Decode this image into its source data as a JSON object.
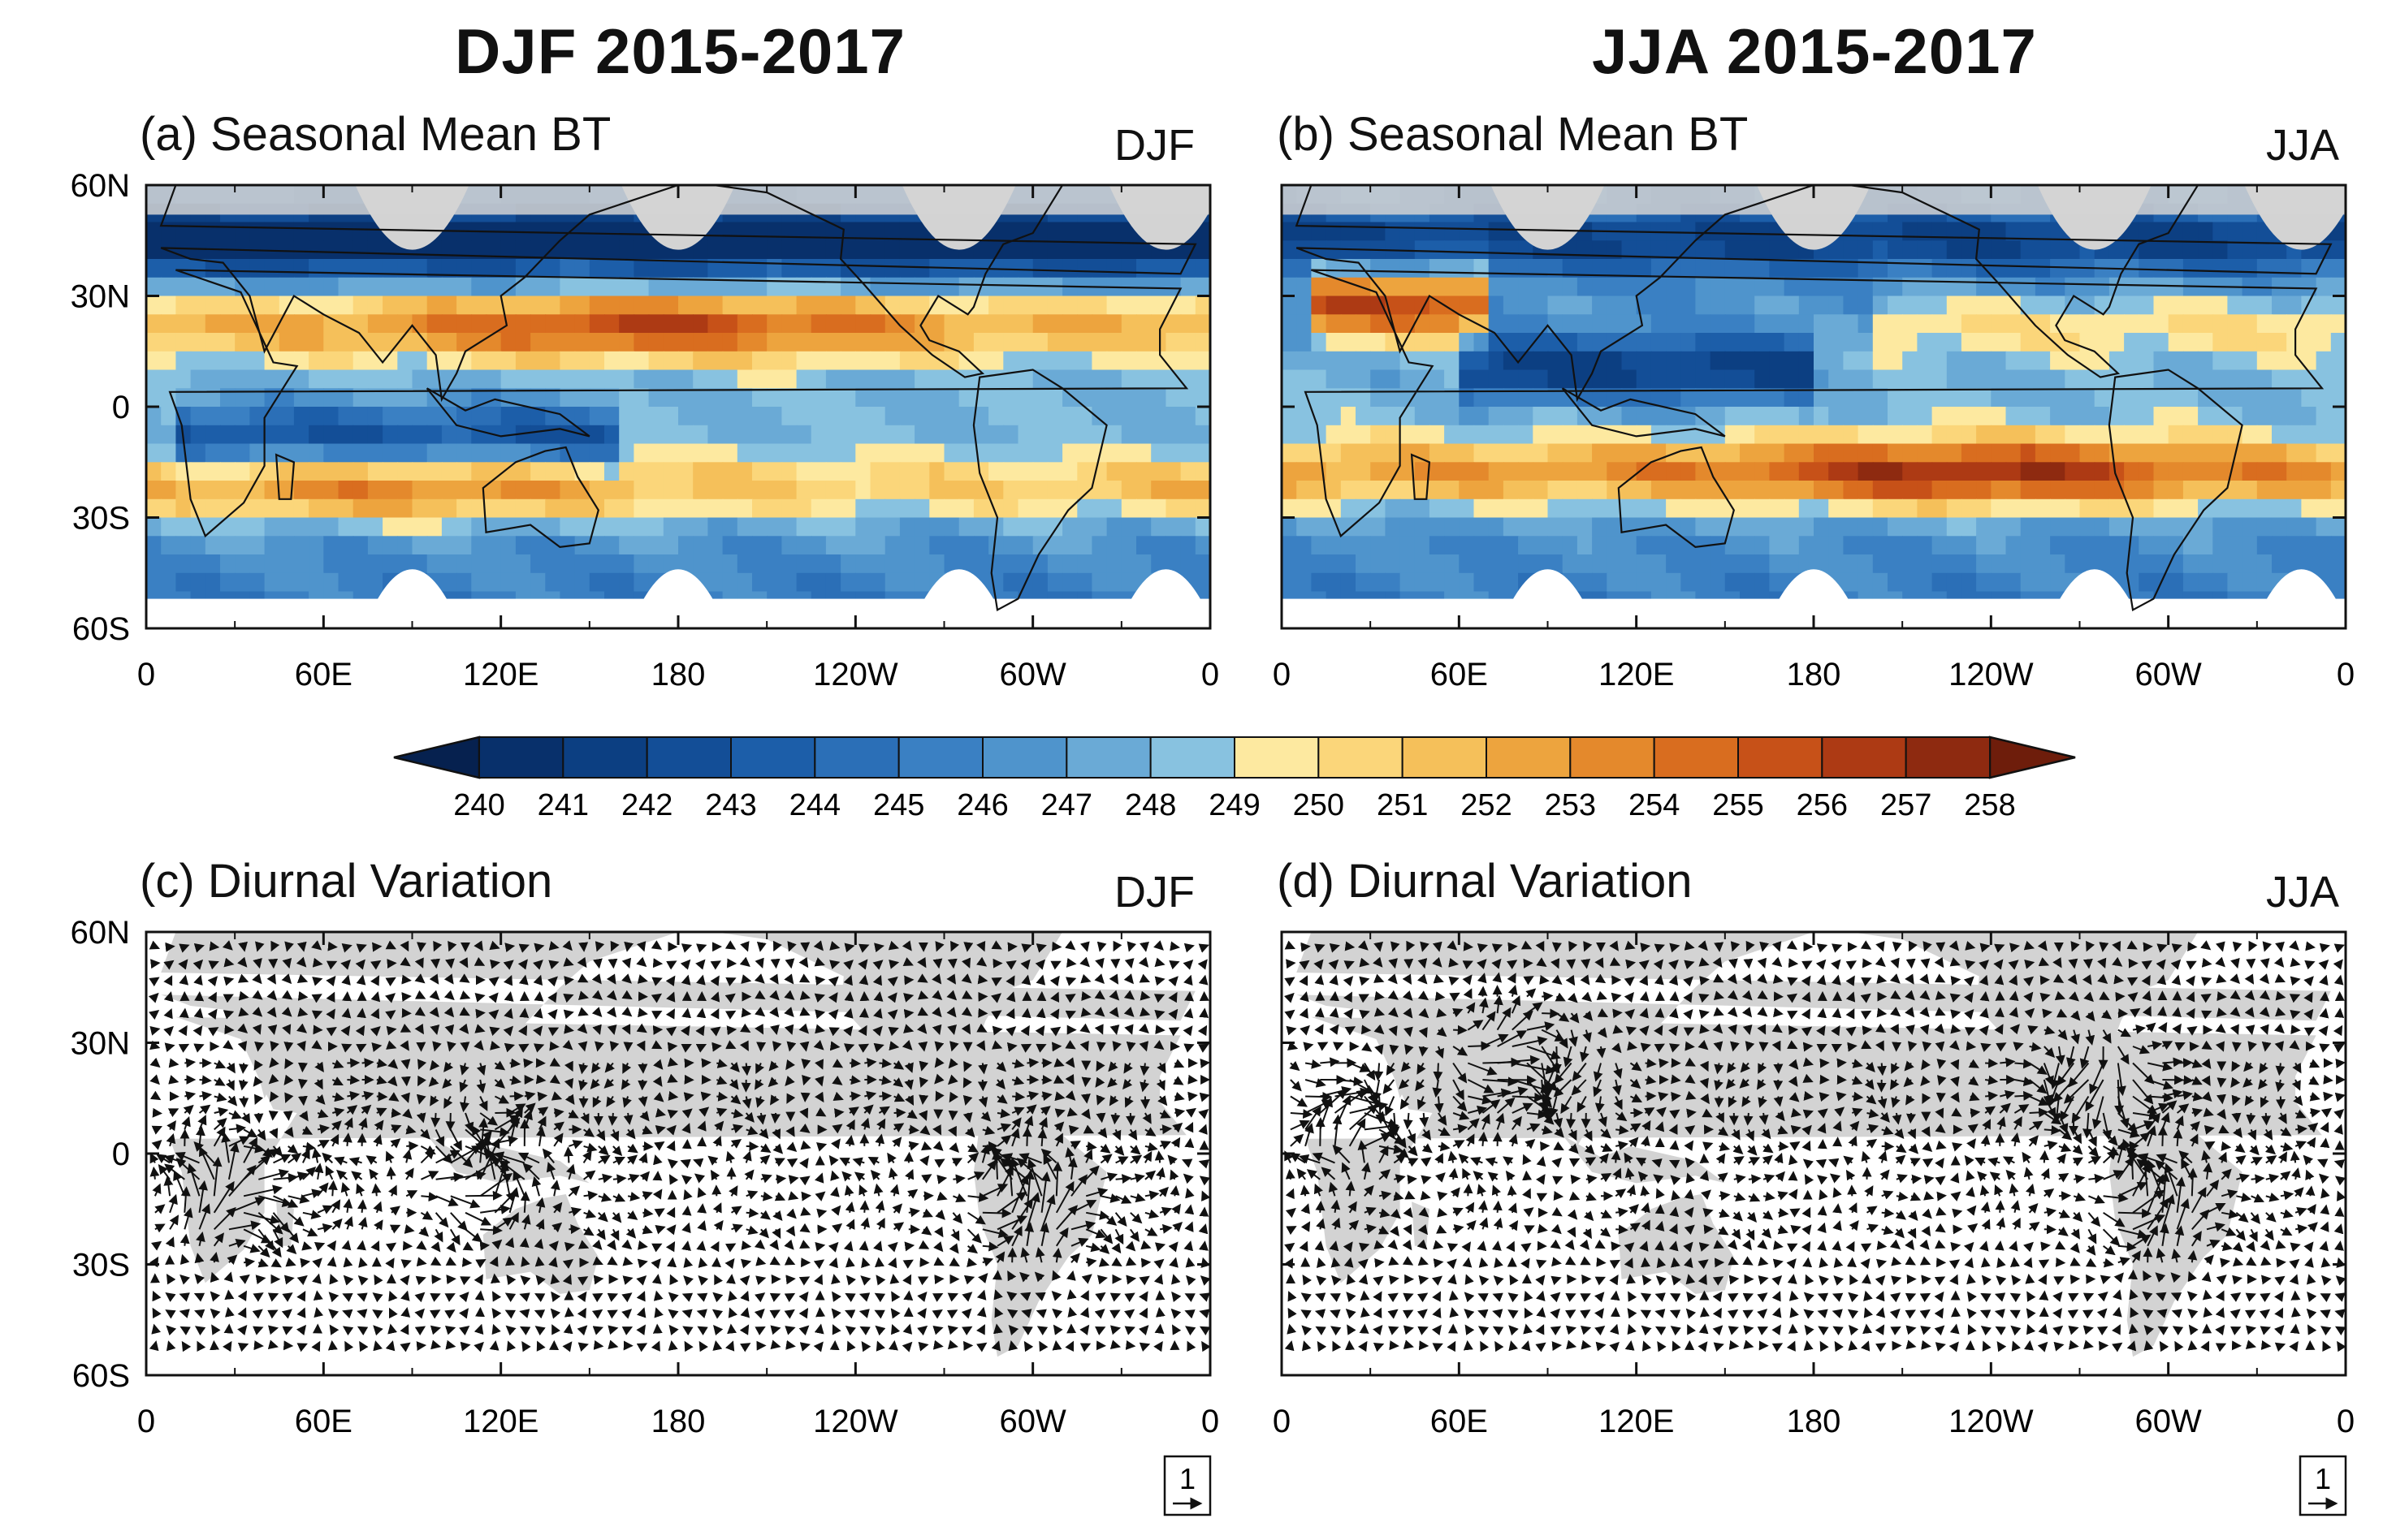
{
  "figure": {
    "column_titles": [
      "DJF 2015-2017",
      "JJA 2015-2017"
    ],
    "panels": [
      {
        "id": "a",
        "label": "(a) Seasonal Mean BT",
        "season": "DJF"
      },
      {
        "id": "b",
        "label": "(b) Seasonal Mean BT",
        "season": "JJA"
      },
      {
        "id": "c",
        "label": "(c) Diurnal Variation",
        "season": "DJF",
        "vector_key": "1"
      },
      {
        "id": "d",
        "label": "(d) Diurnal Variation",
        "season": "JJA",
        "vector_key": "1"
      }
    ],
    "colors": {
      "land_gray": "#d3d3d3",
      "palette": [
        "#08306b",
        "#0c3f82",
        "#134e97",
        "#1c5ea9",
        "#2b6fb7",
        "#3a80c3",
        "#4f94cc",
        "#6aaad6",
        "#88c2e0",
        "#fde9a0",
        "#fbd67a",
        "#f5c05a",
        "#eda43e",
        "#e4892c",
        "#d96d1f",
        "#c75118",
        "#ad3a14",
        "#8e2a10"
      ],
      "low_extend": "#06214f",
      "high_extend": "#6e1d0b"
    }
  },
  "chart_data": [
    {
      "type": "heatmap",
      "title": "(a) Seasonal Mean BT",
      "season": "DJF",
      "x_ticks": [
        "0",
        "60E",
        "120E",
        "180",
        "120W",
        "60W",
        "0"
      ],
      "y_ticks": [
        "60N",
        "30N",
        "0",
        "30S",
        "60S"
      ],
      "xlim": [
        0,
        360
      ],
      "ylim": [
        -60,
        60
      ],
      "colorbar_levels": [
        240,
        241,
        242,
        243,
        244,
        245,
        246,
        247,
        248,
        249,
        250,
        251,
        252,
        253,
        254,
        255,
        256,
        257,
        258
      ],
      "warm_bands": [
        {
          "lat": 22,
          "lon_start": 0,
          "lon_end": 360,
          "peak_lon": 170,
          "value": 257
        },
        {
          "lat": -22,
          "lon_start": 0,
          "lon_end": 360,
          "peak_lon": 85,
          "value": 255
        }
      ],
      "cold_bands": [
        {
          "lat": -8,
          "lon_start": 10,
          "lon_end": 160,
          "value": 243
        },
        {
          "lat": 45,
          "lon_start": 0,
          "lon_end": 360,
          "value": 241
        }
      ]
    },
    {
      "type": "heatmap",
      "title": "(b) Seasonal Mean BT",
      "season": "JJA",
      "x_ticks": [
        "0",
        "60E",
        "120E",
        "180",
        "120W",
        "60W",
        "0"
      ],
      "y_ticks": [
        "60N",
        "30N",
        "0",
        "30S",
        "60S"
      ],
      "xlim": [
        0,
        360
      ],
      "ylim": [
        -60,
        60
      ],
      "colorbar_levels": [
        240,
        241,
        242,
        243,
        244,
        245,
        246,
        247,
        248,
        249,
        250,
        251,
        252,
        253,
        254,
        255,
        256,
        257,
        258
      ],
      "warm_bands": [
        {
          "lat": -18,
          "lon_start": 0,
          "lon_end": 360,
          "peak_lon": 230,
          "value": 258
        },
        {
          "lat": 28,
          "lon_start": 10,
          "lon_end": 70,
          "value": 257
        },
        {
          "lat": 22,
          "lon_start": 200,
          "lon_end": 360,
          "value": 251
        }
      ],
      "cold_bands": [
        {
          "lat": 10,
          "lon_start": 60,
          "lon_end": 180,
          "value": 242
        },
        {
          "lat": 45,
          "lon_start": 0,
          "lon_end": 360,
          "value": 244
        }
      ]
    },
    {
      "type": "scatter",
      "subtype": "vector-field",
      "title": "(c) Diurnal Variation",
      "season": "DJF",
      "x_ticks": [
        "0",
        "60E",
        "120E",
        "180",
        "120W",
        "60W",
        "0"
      ],
      "y_ticks": [
        "60N",
        "30N",
        "0",
        "30S",
        "60S"
      ],
      "xlim": [
        0,
        360
      ],
      "ylim": [
        -60,
        60
      ],
      "reference_vector": 1,
      "strong_regions": [
        {
          "lon": 30,
          "lat": -12,
          "magnitude": 1.4
        },
        {
          "lon": 115,
          "lat": -5,
          "magnitude": 1.6
        },
        {
          "lon": 300,
          "lat": -15,
          "magnitude": 1.5
        }
      ]
    },
    {
      "type": "scatter",
      "subtype": "vector-field",
      "title": "(d) Diurnal Variation",
      "season": "JJA",
      "x_ticks": [
        "0",
        "60E",
        "120E",
        "180",
        "120W",
        "60W",
        "0"
      ],
      "y_ticks": [
        "60N",
        "30N",
        "0",
        "30S",
        "60S"
      ],
      "xlim": [
        0,
        360
      ],
      "ylim": [
        -60,
        60
      ],
      "reference_vector": 1,
      "strong_regions": [
        {
          "lon": 80,
          "lat": 25,
          "magnitude": 1.6
        },
        {
          "lon": 20,
          "lat": 10,
          "magnitude": 1.3
        },
        {
          "lon": 275,
          "lat": 20,
          "magnitude": 1.3
        },
        {
          "lon": 295,
          "lat": -15,
          "magnitude": 1.4
        }
      ]
    }
  ]
}
